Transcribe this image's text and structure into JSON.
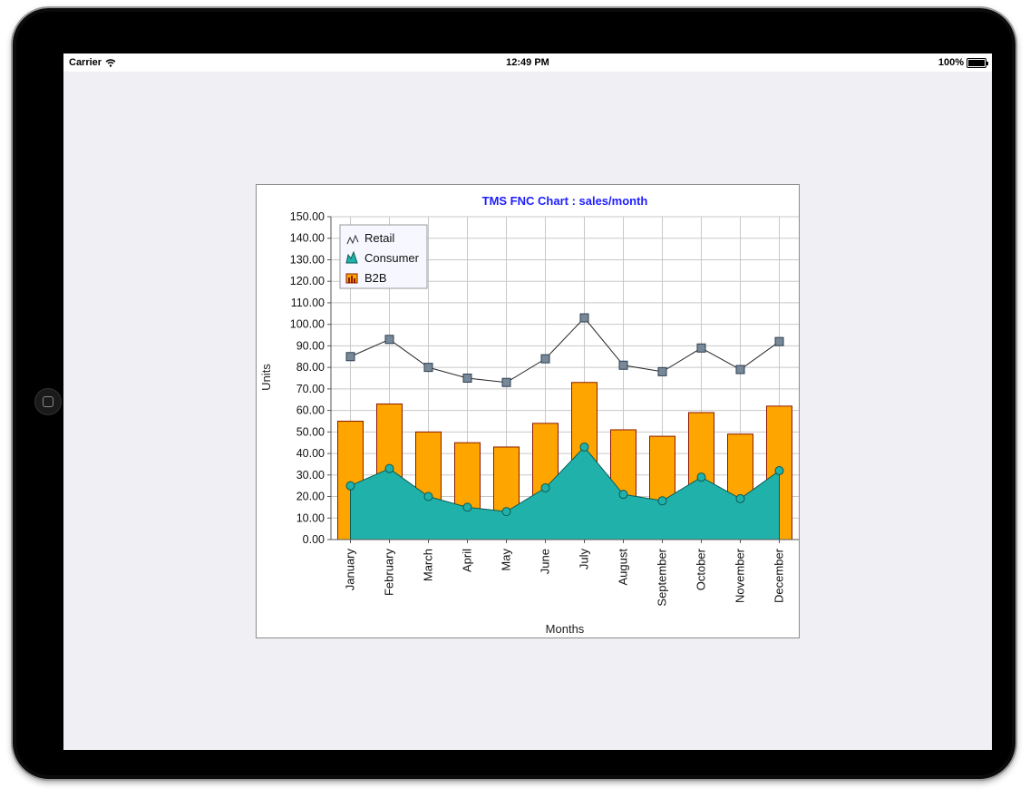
{
  "status_bar": {
    "carrier": "Carrier",
    "time": "12:49 PM",
    "battery": "100%"
  },
  "chart_data": {
    "type": "bar",
    "title": "TMS FNC Chart : sales/month",
    "xlabel": "Months",
    "ylabel": "Units",
    "ylim": [
      0,
      150
    ],
    "y_ticks": [
      "0.00",
      "10.00",
      "20.00",
      "30.00",
      "40.00",
      "50.00",
      "60.00",
      "70.00",
      "80.00",
      "90.00",
      "100.00",
      "110.00",
      "120.00",
      "130.00",
      "140.00",
      "150.00"
    ],
    "grid": true,
    "legend_position": "top-left",
    "categories": [
      "January",
      "February",
      "March",
      "April",
      "May",
      "June",
      "July",
      "August",
      "September",
      "October",
      "November",
      "December"
    ],
    "series": [
      {
        "name": "Retail",
        "type": "line",
        "color": "#778899",
        "values": [
          85,
          93,
          80,
          75,
          73,
          84,
          103,
          81,
          78,
          89,
          79,
          92
        ]
      },
      {
        "name": "Consumer",
        "type": "area",
        "color": "#20b2aa",
        "values": [
          25,
          33,
          20,
          15,
          13,
          24,
          43,
          21,
          18,
          29,
          19,
          32
        ]
      },
      {
        "name": "B2B",
        "type": "bar",
        "color": "#ffa500",
        "values": [
          55,
          63,
          50,
          45,
          43,
          54,
          73,
          51,
          48,
          59,
          49,
          62
        ]
      }
    ]
  }
}
